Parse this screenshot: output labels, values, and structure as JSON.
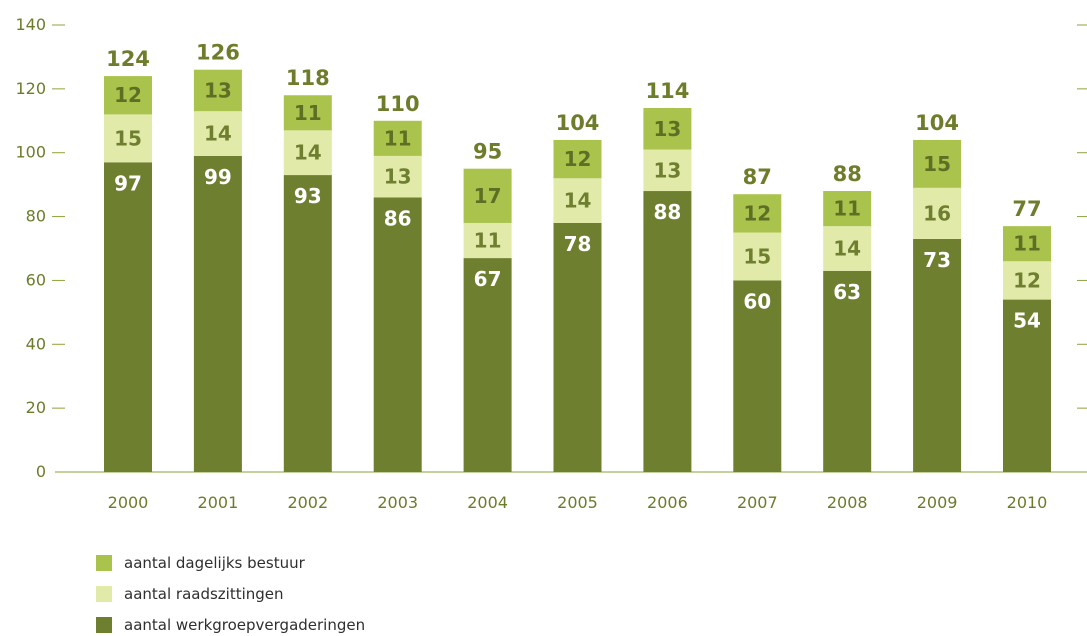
{
  "chart_data": {
    "type": "bar",
    "stacked": true,
    "categories": [
      "2000",
      "2001",
      "2002",
      "2003",
      "2004",
      "2005",
      "2006",
      "2007",
      "2008",
      "2009",
      "2010"
    ],
    "series": [
      {
        "name": "aantal werkgroepvergaderingen",
        "color": "#6e7f2f",
        "label_color": "#ffffff",
        "values": [
          97,
          99,
          93,
          86,
          67,
          78,
          88,
          60,
          63,
          73,
          54
        ]
      },
      {
        "name": "aantal raadszittingen",
        "color": "#e1eaa8",
        "label_color": "#6e7f2f",
        "values": [
          15,
          14,
          14,
          13,
          11,
          14,
          13,
          15,
          14,
          16,
          12
        ]
      },
      {
        "name": "aantal dagelijks bestuur",
        "color": "#a9c34c",
        "label_color": "#5e6e24",
        "values": [
          12,
          13,
          11,
          11,
          17,
          12,
          13,
          12,
          11,
          15,
          11
        ]
      }
    ],
    "totals": [
      124,
      126,
      118,
      110,
      95,
      104,
      114,
      87,
      88,
      104,
      77
    ],
    "ylim": [
      0,
      140
    ],
    "yticks": [
      "0",
      "20",
      "40",
      "60",
      "80",
      "100",
      "120",
      "140"
    ],
    "grid": false,
    "legend_position": "bottom-left",
    "axis_color": "#8da43a",
    "tick_text_color": "#6b7d2b",
    "title": "",
    "xlabel": "",
    "ylabel": ""
  }
}
